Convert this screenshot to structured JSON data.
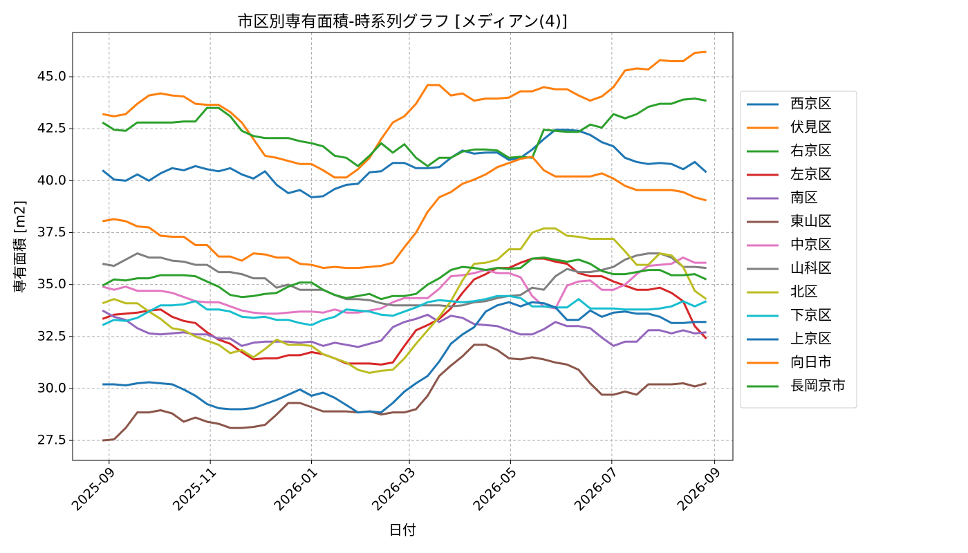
{
  "chart_data": {
    "type": "line",
    "title": "市区別専有面積-時系列グラフ [メディアン(4)]",
    "xlabel": "日付",
    "ylabel": "専有面積 [m2]",
    "x": [
      -4,
      3,
      10,
      17,
      24,
      31,
      38,
      45,
      52,
      59,
      66,
      73,
      80,
      87,
      94,
      101,
      108,
      115,
      122,
      129,
      136,
      143,
      150,
      157,
      164,
      171,
      178,
      185,
      192,
      199,
      206,
      213,
      220,
      227,
      234,
      241,
      248,
      255,
      262,
      269,
      276,
      283,
      290,
      297,
      304,
      311,
      318,
      325,
      332,
      339,
      346,
      353,
      360
    ],
    "xlim": [
      -22,
      376
    ],
    "xticks": [
      {
        "value": 0,
        "label": "2025-09"
      },
      {
        "value": 61,
        "label": "2025-11"
      },
      {
        "value": 122,
        "label": "2026-01"
      },
      {
        "value": 181,
        "label": "2026-03"
      },
      {
        "value": 242,
        "label": "2026-05"
      },
      {
        "value": 303,
        "label": "2026-07"
      },
      {
        "value": 365,
        "label": "2026-09"
      }
    ],
    "ylim": [
      26.54,
      47.13
    ],
    "yticks": [
      27.5,
      {
        "value": 30,
        "label": "30.0"
      },
      32.5,
      {
        "value": 35,
        "label": "35.0"
      },
      37.5,
      {
        "value": 40,
        "label": "40.0"
      },
      42.5,
      {
        "value": 45,
        "label": "45.0"
      }
    ],
    "grid": true,
    "legend": "outside right",
    "series": [
      {
        "name": "西京区",
        "color": "#1f77b4",
        "values": [
          40.5,
          40.05,
          40.0,
          40.3,
          40.0,
          40.35,
          40.6,
          40.5,
          40.7,
          40.55,
          40.45,
          40.6,
          40.3,
          40.1,
          40.45,
          39.8,
          39.4,
          39.55,
          39.2,
          39.25,
          39.6,
          39.8,
          39.85,
          40.4,
          40.45,
          40.85,
          40.85,
          40.6,
          40.6,
          40.65,
          41.1,
          41.45,
          41.3,
          41.35,
          41.35,
          41.0,
          41.1,
          41.5,
          42.0,
          42.45,
          42.45,
          42.4,
          42.2,
          41.85,
          41.65,
          41.1,
          40.9,
          40.8,
          40.85,
          40.8,
          40.55,
          40.9,
          40.4
        ]
      },
      {
        "name": "伏見区",
        "color": "#ff7f0e",
        "values": [
          43.2,
          43.1,
          43.2,
          43.7,
          44.1,
          44.2,
          44.1,
          44.05,
          43.7,
          43.65,
          43.65,
          43.3,
          42.8,
          42.0,
          41.2,
          41.1,
          40.95,
          40.8,
          40.8,
          40.5,
          40.15,
          40.15,
          40.55,
          41.1,
          42.0,
          42.8,
          43.1,
          43.7,
          44.6,
          44.6,
          44.1,
          44.2,
          43.85,
          43.95,
          43.95,
          44.0,
          44.3,
          44.3,
          44.5,
          44.4,
          44.4,
          44.1,
          43.85,
          44.05,
          44.5,
          45.3,
          45.4,
          45.35,
          45.8,
          45.75,
          45.75,
          46.15,
          46.2
        ]
      },
      {
        "name": "右京区",
        "color": "#2ca02c",
        "values": [
          42.8,
          42.45,
          42.4,
          42.8,
          42.8,
          42.8,
          42.8,
          42.85,
          42.85,
          43.5,
          43.5,
          43.1,
          42.4,
          42.15,
          42.05,
          42.05,
          42.05,
          41.9,
          41.8,
          41.65,
          41.2,
          41.1,
          40.7,
          41.2,
          41.8,
          41.35,
          41.75,
          41.1,
          40.7,
          41.1,
          41.1,
          41.4,
          41.5,
          41.5,
          41.45,
          41.1,
          41.15,
          41.1,
          42.45,
          42.4,
          42.35,
          42.35,
          42.7,
          42.55,
          43.2,
          43.0,
          43.2,
          43.55,
          43.7,
          43.7,
          43.9,
          43.95,
          43.85
        ]
      },
      {
        "name": "左京区",
        "color": "#d62728",
        "values": [
          33.35,
          33.55,
          33.6,
          33.65,
          33.75,
          33.8,
          33.45,
          33.25,
          33.15,
          32.7,
          32.35,
          32.15,
          31.75,
          31.4,
          31.45,
          31.45,
          31.6,
          31.6,
          31.75,
          31.65,
          31.45,
          31.2,
          31.2,
          31.2,
          31.15,
          31.25,
          32.05,
          32.8,
          33.05,
          33.35,
          33.85,
          34.6,
          35.25,
          35.5,
          35.8,
          35.8,
          36.05,
          36.25,
          36.25,
          36.1,
          36.0,
          35.55,
          35.4,
          35.4,
          35.15,
          34.95,
          34.75,
          34.75,
          34.85,
          34.6,
          34.2,
          33.0,
          32.4
        ]
      },
      {
        "name": "南区",
        "color": "#9467bd",
        "values": [
          33.75,
          33.45,
          33.3,
          32.9,
          32.65,
          32.6,
          32.65,
          32.7,
          32.6,
          32.6,
          32.4,
          32.4,
          32.05,
          32.2,
          32.25,
          32.25,
          32.25,
          32.2,
          32.25,
          32.05,
          32.2,
          32.1,
          32.0,
          32.15,
          32.3,
          32.95,
          33.2,
          33.35,
          33.55,
          33.2,
          33.5,
          33.4,
          33.1,
          33.05,
          33.0,
          32.8,
          32.6,
          32.6,
          32.85,
          33.2,
          33.0,
          33.0,
          32.9,
          32.45,
          32.05,
          32.25,
          32.25,
          32.8,
          32.8,
          32.65,
          32.8,
          32.65,
          32.7
        ]
      },
      {
        "name": "東山区",
        "color": "#8c564b",
        "values": [
          27.5,
          27.55,
          28.1,
          28.85,
          28.85,
          28.95,
          28.8,
          28.4,
          28.6,
          28.4,
          28.3,
          28.1,
          28.1,
          28.15,
          28.25,
          28.75,
          29.3,
          29.3,
          29.1,
          28.9,
          28.9,
          28.9,
          28.85,
          28.9,
          28.75,
          28.85,
          28.85,
          29.0,
          29.65,
          30.6,
          31.1,
          31.55,
          32.1,
          32.1,
          31.85,
          31.45,
          31.4,
          31.5,
          31.4,
          31.25,
          31.15,
          30.9,
          30.25,
          29.7,
          29.7,
          29.85,
          29.7,
          30.2,
          30.2,
          30.2,
          30.25,
          30.1,
          30.25
        ]
      },
      {
        "name": "中京区",
        "color": "#e377c2",
        "values": [
          34.9,
          34.75,
          34.9,
          34.7,
          34.7,
          34.7,
          34.6,
          34.4,
          34.2,
          34.15,
          34.15,
          33.95,
          33.75,
          33.65,
          33.6,
          33.6,
          33.65,
          33.7,
          33.7,
          33.65,
          33.8,
          33.65,
          33.65,
          33.75,
          33.85,
          34.15,
          34.35,
          34.35,
          34.35,
          34.8,
          35.4,
          35.45,
          35.55,
          35.7,
          35.55,
          35.55,
          35.35,
          34.45,
          33.95,
          33.85,
          34.95,
          35.15,
          35.2,
          34.75,
          34.75,
          35.0,
          35.5,
          35.9,
          35.95,
          36.0,
          36.3,
          36.05,
          36.05
        ]
      },
      {
        "name": "山科区",
        "color": "#7f7f7f",
        "values": [
          36.0,
          35.9,
          36.2,
          36.5,
          36.3,
          36.3,
          36.15,
          36.1,
          35.95,
          35.95,
          35.6,
          35.6,
          35.5,
          35.3,
          35.3,
          34.85,
          35.0,
          34.75,
          34.75,
          34.75,
          34.5,
          34.3,
          34.3,
          34.25,
          34.1,
          34.0,
          34.0,
          34.0,
          34.0,
          34.0,
          33.95,
          34.0,
          34.15,
          34.2,
          34.35,
          34.45,
          34.5,
          34.85,
          34.75,
          35.4,
          35.75,
          35.6,
          35.6,
          35.7,
          35.85,
          36.2,
          36.4,
          36.5,
          36.5,
          36.3,
          35.85,
          35.85,
          35.8
        ]
      },
      {
        "name": "北区",
        "color": "#bcbd22",
        "values": [
          34.1,
          34.3,
          34.1,
          34.1,
          33.7,
          33.35,
          32.9,
          32.8,
          32.5,
          32.3,
          32.1,
          31.7,
          31.85,
          31.5,
          31.9,
          32.35,
          32.1,
          32.1,
          32.05,
          31.65,
          31.45,
          31.25,
          30.9,
          30.75,
          30.85,
          30.9,
          31.45,
          32.15,
          32.8,
          33.45,
          34.2,
          35.2,
          36.0,
          36.05,
          36.2,
          36.7,
          36.7,
          37.5,
          37.7,
          37.7,
          37.35,
          37.3,
          37.2,
          37.2,
          37.2,
          36.6,
          35.95,
          35.95,
          36.5,
          36.4,
          35.85,
          34.7,
          34.3
        ]
      },
      {
        "name": "下京区",
        "color": "#17becf",
        "values": [
          33.05,
          33.3,
          33.25,
          33.4,
          33.7,
          34.0,
          34.0,
          34.05,
          34.2,
          33.8,
          33.8,
          33.7,
          33.45,
          33.4,
          33.45,
          33.3,
          33.3,
          33.15,
          33.05,
          33.3,
          33.45,
          33.8,
          33.75,
          33.7,
          33.55,
          33.5,
          33.7,
          33.9,
          34.15,
          34.25,
          34.2,
          34.15,
          34.2,
          34.3,
          34.45,
          34.45,
          34.35,
          33.95,
          33.95,
          33.9,
          33.9,
          34.3,
          33.85,
          33.85,
          33.85,
          33.8,
          33.8,
          33.8,
          33.85,
          33.95,
          34.2,
          33.95,
          34.2
        ]
      },
      {
        "name": "上京区",
        "color": "#1f77b4",
        "values": [
          30.2,
          30.2,
          30.15,
          30.25,
          30.3,
          30.25,
          30.2,
          29.95,
          29.65,
          29.25,
          29.05,
          29.0,
          29.0,
          29.05,
          29.25,
          29.45,
          29.7,
          29.95,
          29.65,
          29.8,
          29.55,
          29.2,
          28.85,
          28.9,
          28.85,
          29.3,
          29.85,
          30.25,
          30.6,
          31.3,
          32.15,
          32.6,
          32.95,
          33.7,
          34.0,
          34.15,
          33.95,
          34.15,
          34.1,
          33.9,
          33.3,
          33.3,
          33.75,
          33.45,
          33.65,
          33.7,
          33.6,
          33.6,
          33.45,
          33.15,
          33.15,
          33.2,
          33.2
        ]
      },
      {
        "name": "向日市",
        "color": "#ff7f0e",
        "values": [
          38.05,
          38.15,
          38.05,
          37.8,
          37.75,
          37.35,
          37.3,
          37.3,
          36.9,
          36.9,
          36.35,
          36.35,
          36.15,
          36.5,
          36.45,
          36.3,
          36.3,
          36.0,
          35.95,
          35.8,
          35.85,
          35.8,
          35.8,
          35.85,
          35.9,
          36.05,
          36.8,
          37.5,
          38.5,
          39.2,
          39.45,
          39.85,
          40.05,
          40.3,
          40.65,
          40.85,
          41.05,
          41.15,
          40.5,
          40.2,
          40.2,
          40.2,
          40.2,
          40.35,
          40.1,
          39.75,
          39.55,
          39.55,
          39.55,
          39.55,
          39.45,
          39.2,
          39.05
        ]
      },
      {
        "name": "長岡京市",
        "color": "#2ca02c",
        "values": [
          34.95,
          35.25,
          35.2,
          35.3,
          35.3,
          35.45,
          35.45,
          35.45,
          35.4,
          35.15,
          34.9,
          34.5,
          34.4,
          34.45,
          34.55,
          34.6,
          34.9,
          35.1,
          35.1,
          34.75,
          34.5,
          34.35,
          34.45,
          34.55,
          34.3,
          34.45,
          34.45,
          34.55,
          35.0,
          35.3,
          35.7,
          35.85,
          35.8,
          35.7,
          35.8,
          35.75,
          35.8,
          36.25,
          36.3,
          36.2,
          36.1,
          36.2,
          36.0,
          35.65,
          35.5,
          35.5,
          35.6,
          35.7,
          35.7,
          35.45,
          35.45,
          35.5,
          35.25
        ]
      }
    ]
  }
}
